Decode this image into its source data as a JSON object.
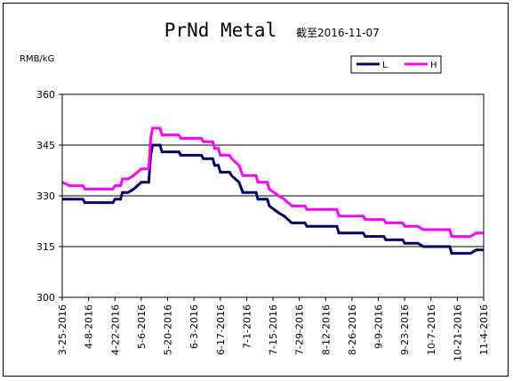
{
  "chart_data": {
    "type": "line",
    "title": "PrNd Metal",
    "subtitle": "截至2016-11-07",
    "ylabel": "RMB/kG",
    "xlabel": "",
    "ylim": [
      300,
      360
    ],
    "yticks": [
      300,
      315,
      330,
      345,
      360
    ],
    "xlim": [
      "2016-03-25",
      "2016-11-04"
    ],
    "xticks": [
      "3-25-2016",
      "4-8-2016",
      "4-22-2016",
      "5-6-2016",
      "5-20-2016",
      "6-3-2016",
      "6-17-2016",
      "7-1-2016",
      "7-15-2016",
      "7-29-2016",
      "8-12-2016",
      "8-26-2016",
      "9-9-2016",
      "9-23-2016",
      "10-7-2016",
      "10-21-2016",
      "11-4-2016"
    ],
    "grid": "horizontal",
    "legend": "top-right",
    "colors": {
      "L": "#000066",
      "H": "#ff00ff"
    },
    "series": [
      {
        "name": "L",
        "color": "#000066",
        "points": [
          [
            "2016-03-25",
            329
          ],
          [
            "2016-04-05",
            329
          ],
          [
            "2016-04-06",
            328
          ],
          [
            "2016-04-21",
            328
          ],
          [
            "2016-04-22",
            329
          ],
          [
            "2016-04-25",
            329
          ],
          [
            "2016-04-26",
            331
          ],
          [
            "2016-04-29",
            331
          ],
          [
            "2016-05-02",
            332
          ],
          [
            "2016-05-04",
            333
          ],
          [
            "2016-05-06",
            334
          ],
          [
            "2016-05-10",
            334
          ],
          [
            "2016-05-11",
            342
          ],
          [
            "2016-05-12",
            345
          ],
          [
            "2016-05-16",
            345
          ],
          [
            "2016-05-17",
            343
          ],
          [
            "2016-05-26",
            343
          ],
          [
            "2016-05-27",
            342
          ],
          [
            "2016-06-07",
            342
          ],
          [
            "2016-06-08",
            341
          ],
          [
            "2016-06-13",
            341
          ],
          [
            "2016-06-14",
            339
          ],
          [
            "2016-06-16",
            339
          ],
          [
            "2016-06-17",
            337
          ],
          [
            "2016-06-22",
            337
          ],
          [
            "2016-06-23",
            336
          ],
          [
            "2016-06-27",
            334
          ],
          [
            "2016-06-29",
            331
          ],
          [
            "2016-07-06",
            331
          ],
          [
            "2016-07-07",
            329
          ],
          [
            "2016-07-12",
            329
          ],
          [
            "2016-07-13",
            327
          ],
          [
            "2016-07-18",
            325
          ],
          [
            "2016-07-21",
            324
          ],
          [
            "2016-07-25",
            322
          ],
          [
            "2016-08-01",
            322
          ],
          [
            "2016-08-02",
            321
          ],
          [
            "2016-08-18",
            321
          ],
          [
            "2016-08-19",
            319
          ],
          [
            "2016-09-01",
            319
          ],
          [
            "2016-09-02",
            318
          ],
          [
            "2016-09-12",
            318
          ],
          [
            "2016-09-13",
            317
          ],
          [
            "2016-09-22",
            317
          ],
          [
            "2016-09-23",
            316
          ],
          [
            "2016-09-30",
            316
          ],
          [
            "2016-10-03",
            315
          ],
          [
            "2016-10-17",
            315
          ],
          [
            "2016-10-18",
            313
          ],
          [
            "2016-10-28",
            313
          ],
          [
            "2016-10-31",
            314
          ],
          [
            "2016-11-04",
            314
          ]
        ]
      },
      {
        "name": "H",
        "color": "#ff00ff",
        "points": [
          [
            "2016-03-25",
            334
          ],
          [
            "2016-03-29",
            333
          ],
          [
            "2016-04-05",
            333
          ],
          [
            "2016-04-06",
            332
          ],
          [
            "2016-04-21",
            332
          ],
          [
            "2016-04-22",
            333
          ],
          [
            "2016-04-25",
            333
          ],
          [
            "2016-04-26",
            335
          ],
          [
            "2016-04-29",
            335
          ],
          [
            "2016-05-02",
            336
          ],
          [
            "2016-05-04",
            337
          ],
          [
            "2016-05-06",
            338
          ],
          [
            "2016-05-10",
            338
          ],
          [
            "2016-05-11",
            347
          ],
          [
            "2016-05-12",
            350
          ],
          [
            "2016-05-16",
            350
          ],
          [
            "2016-05-17",
            348
          ],
          [
            "2016-05-26",
            348
          ],
          [
            "2016-05-27",
            347
          ],
          [
            "2016-06-07",
            347
          ],
          [
            "2016-06-08",
            346
          ],
          [
            "2016-06-13",
            346
          ],
          [
            "2016-06-14",
            344
          ],
          [
            "2016-06-16",
            344
          ],
          [
            "2016-06-17",
            342
          ],
          [
            "2016-06-22",
            342
          ],
          [
            "2016-06-23",
            341
          ],
          [
            "2016-06-27",
            339
          ],
          [
            "2016-06-29",
            336
          ],
          [
            "2016-07-06",
            336
          ],
          [
            "2016-07-07",
            334
          ],
          [
            "2016-07-12",
            334
          ],
          [
            "2016-07-13",
            332
          ],
          [
            "2016-07-18",
            330
          ],
          [
            "2016-07-21",
            329
          ],
          [
            "2016-07-25",
            327
          ],
          [
            "2016-08-01",
            327
          ],
          [
            "2016-08-02",
            326
          ],
          [
            "2016-08-18",
            326
          ],
          [
            "2016-08-19",
            324
          ],
          [
            "2016-09-01",
            324
          ],
          [
            "2016-09-02",
            323
          ],
          [
            "2016-09-12",
            323
          ],
          [
            "2016-09-13",
            322
          ],
          [
            "2016-09-22",
            322
          ],
          [
            "2016-09-23",
            321
          ],
          [
            "2016-09-30",
            321
          ],
          [
            "2016-10-03",
            320
          ],
          [
            "2016-10-17",
            320
          ],
          [
            "2016-10-18",
            318
          ],
          [
            "2016-10-28",
            318
          ],
          [
            "2016-10-31",
            319
          ],
          [
            "2016-11-04",
            319
          ]
        ]
      }
    ]
  }
}
